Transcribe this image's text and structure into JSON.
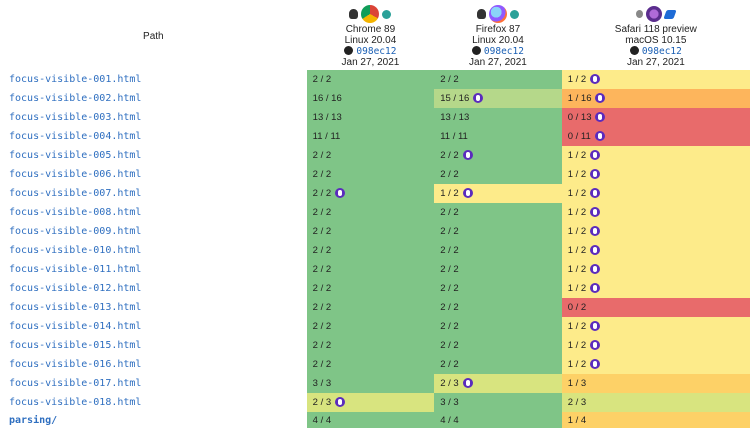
{
  "header": {
    "path_label": "Path",
    "browsers": [
      {
        "name": "Chrome 89",
        "os": "Linux 20.04",
        "sha": "098ec12",
        "date": "Jan 27, 2021",
        "icons": [
          "linux-icon",
          "chrome-icon",
          "runner-icon"
        ]
      },
      {
        "name": "Firefox 87",
        "os": "Linux 20.04",
        "sha": "098ec12",
        "date": "Jan 27, 2021",
        "icons": [
          "linux-icon",
          "firefox-icon",
          "runner-icon"
        ]
      },
      {
        "name": "Safari 118 preview",
        "os": "macOS 10.15",
        "sha": "098ec12",
        "date": "Jan 27, 2021",
        "icons": [
          "apple-icon",
          "safari-preview-icon",
          "azure-icon"
        ]
      }
    ]
  },
  "rows": [
    {
      "path": "focus-visible-001.html",
      "r": [
        "2 / 2",
        "2 / 2",
        "1 / 2"
      ],
      "c": [
        "g",
        "g",
        "y"
      ],
      "bug": [
        false,
        false,
        true
      ]
    },
    {
      "path": "focus-visible-002.html",
      "r": [
        "16 / 16",
        "15 / 16",
        "1 / 16"
      ],
      "c": [
        "g",
        "yg",
        "o"
      ],
      "bug": [
        false,
        true,
        true
      ]
    },
    {
      "path": "focus-visible-003.html",
      "r": [
        "13 / 13",
        "13 / 13",
        "0 / 13"
      ],
      "c": [
        "g",
        "g",
        "r"
      ],
      "bug": [
        false,
        false,
        true
      ]
    },
    {
      "path": "focus-visible-004.html",
      "r": [
        "11 / 11",
        "11 / 11",
        "0 / 11"
      ],
      "c": [
        "g",
        "g",
        "r"
      ],
      "bug": [
        false,
        false,
        true
      ]
    },
    {
      "path": "focus-visible-005.html",
      "r": [
        "2 / 2",
        "2 / 2",
        "1 / 2"
      ],
      "c": [
        "g",
        "g",
        "y"
      ],
      "bug": [
        false,
        true,
        true
      ]
    },
    {
      "path": "focus-visible-006.html",
      "r": [
        "2 / 2",
        "2 / 2",
        "1 / 2"
      ],
      "c": [
        "g",
        "g",
        "y"
      ],
      "bug": [
        false,
        false,
        true
      ]
    },
    {
      "path": "focus-visible-007.html",
      "r": [
        "2 / 2",
        "1 / 2",
        "1 / 2"
      ],
      "c": [
        "g",
        "y",
        "y"
      ],
      "bug": [
        true,
        true,
        true
      ]
    },
    {
      "path": "focus-visible-008.html",
      "r": [
        "2 / 2",
        "2 / 2",
        "1 / 2"
      ],
      "c": [
        "g",
        "g",
        "y"
      ],
      "bug": [
        false,
        false,
        true
      ]
    },
    {
      "path": "focus-visible-009.html",
      "r": [
        "2 / 2",
        "2 / 2",
        "1 / 2"
      ],
      "c": [
        "g",
        "g",
        "y"
      ],
      "bug": [
        false,
        false,
        true
      ]
    },
    {
      "path": "focus-visible-010.html",
      "r": [
        "2 / 2",
        "2 / 2",
        "1 / 2"
      ],
      "c": [
        "g",
        "g",
        "y"
      ],
      "bug": [
        false,
        false,
        true
      ]
    },
    {
      "path": "focus-visible-011.html",
      "r": [
        "2 / 2",
        "2 / 2",
        "1 / 2"
      ],
      "c": [
        "g",
        "g",
        "y"
      ],
      "bug": [
        false,
        false,
        true
      ]
    },
    {
      "path": "focus-visible-012.html",
      "r": [
        "2 / 2",
        "2 / 2",
        "1 / 2"
      ],
      "c": [
        "g",
        "g",
        "y"
      ],
      "bug": [
        false,
        false,
        true
      ]
    },
    {
      "path": "focus-visible-013.html",
      "r": [
        "2 / 2",
        "2 / 2",
        "0 / 2"
      ],
      "c": [
        "g",
        "g",
        "r"
      ],
      "bug": [
        false,
        false,
        false
      ]
    },
    {
      "path": "focus-visible-014.html",
      "r": [
        "2 / 2",
        "2 / 2",
        "1 / 2"
      ],
      "c": [
        "g",
        "g",
        "y"
      ],
      "bug": [
        false,
        false,
        true
      ]
    },
    {
      "path": "focus-visible-015.html",
      "r": [
        "2 / 2",
        "2 / 2",
        "1 / 2"
      ],
      "c": [
        "g",
        "g",
        "y"
      ],
      "bug": [
        false,
        false,
        true
      ]
    },
    {
      "path": "focus-visible-016.html",
      "r": [
        "2 / 2",
        "2 / 2",
        "1 / 2"
      ],
      "c": [
        "g",
        "g",
        "y"
      ],
      "bug": [
        false,
        false,
        true
      ]
    },
    {
      "path": "focus-visible-017.html",
      "r": [
        "3 / 3",
        "2 / 3",
        "1 / 3"
      ],
      "c": [
        "g",
        "lg",
        "lo"
      ],
      "bug": [
        false,
        true,
        false
      ]
    },
    {
      "path": "focus-visible-018.html",
      "r": [
        "2 / 3",
        "3 / 3",
        "2 / 3"
      ],
      "c": [
        "lg",
        "g",
        "lg"
      ],
      "bug": [
        true,
        false,
        false
      ]
    },
    {
      "path": "parsing/",
      "r": [
        "4 / 4",
        "4 / 4",
        "1 / 4"
      ],
      "c": [
        "g",
        "g",
        "lo"
      ],
      "bug": [
        false,
        false,
        false
      ],
      "dir": true
    }
  ],
  "colors": {
    "pass": "#7fc587",
    "partial": "#fdeb8a",
    "fail": "#e86b6b",
    "bug": "#5b2bbd",
    "link": "#2f6fc0"
  }
}
